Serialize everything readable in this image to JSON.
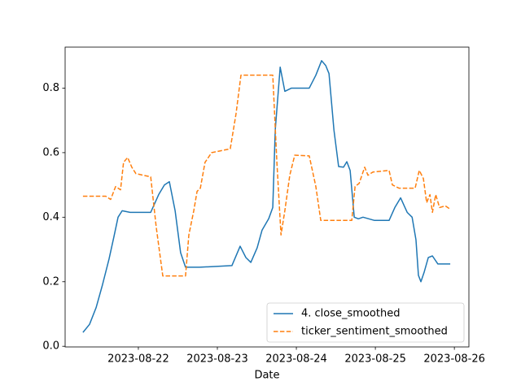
{
  "chart_data": {
    "type": "line",
    "x_label": "Date",
    "xlim": [
      "2023-08-21T01:45",
      "2023-08-26T04:25"
    ],
    "xticks": [
      "2023-08-22",
      "2023-08-23",
      "2023-08-24",
      "2023-08-25",
      "2023-08-26"
    ],
    "ylim": [
      -0.002,
      0.927
    ],
    "yticks": [
      {
        "value": 0,
        "label": "0.0"
      },
      {
        "value": 0.2,
        "label": "0.2"
      },
      {
        "value": 0.4,
        "label": "0.4"
      },
      {
        "value": 0.6,
        "label": "0.6"
      },
      {
        "value": 0.8,
        "label": "0.8"
      }
    ],
    "grid": false,
    "legend": "lower right",
    "series": [
      {
        "name": "4. close_smoothed",
        "color": "#1f77b4",
        "dash": "solid",
        "x": [
          "2023-08-21T07:10",
          "2023-08-21T09:10",
          "2023-08-21T11:10",
          "2023-08-21T13:05",
          "2023-08-21T15:05",
          "2023-08-21T16:35",
          "2023-08-21T17:50",
          "2023-08-21T19:05",
          "2023-08-21T21:30",
          "2023-08-22T03:45",
          "2023-08-22T06:10",
          "2023-08-22T07:55",
          "2023-08-22T09:25",
          "2023-08-22T11:10",
          "2023-08-22T12:50",
          "2023-08-22T14:20",
          "2023-08-22T16:05",
          "2023-08-22T18:35",
          "2023-08-23T04:25",
          "2023-08-23T06:55",
          "2023-08-23T08:40",
          "2023-08-23T10:10",
          "2023-08-23T12:05",
          "2023-08-23T13:35",
          "2023-08-23T15:35",
          "2023-08-23T16:50",
          "2023-08-23T17:35",
          "2023-08-23T19:05",
          "2023-08-23T20:30",
          "2023-08-23T22:30",
          "2023-08-24T03:55",
          "2023-08-24T05:55",
          "2023-08-24T07:40",
          "2023-08-24T08:55",
          "2023-08-24T09:55",
          "2023-08-24T11:25",
          "2023-08-24T12:50",
          "2023-08-24T14:20",
          "2023-08-24T15:20",
          "2023-08-24T16:20",
          "2023-08-24T17:35",
          "2023-08-24T18:50",
          "2023-08-24T20:15",
          "2023-08-24T23:45",
          "2023-08-25T04:10",
          "2023-08-25T05:55",
          "2023-08-25T07:40",
          "2023-08-25T09:40",
          "2023-08-25T11:10",
          "2023-08-25T12:20",
          "2023-08-25T13:05",
          "2023-08-25T13:50",
          "2023-08-25T14:50",
          "2023-08-25T16:05",
          "2023-08-25T17:20",
          "2023-08-25T19:00",
          "2023-08-25T22:45"
        ],
        "values": [
          0.043,
          0.068,
          0.12,
          0.19,
          0.27,
          0.34,
          0.4,
          0.42,
          0.415,
          0.415,
          0.47,
          0.5,
          0.51,
          0.42,
          0.29,
          0.245,
          0.245,
          0.245,
          0.25,
          0.31,
          0.275,
          0.26,
          0.305,
          0.36,
          0.395,
          0.43,
          0.67,
          0.865,
          0.79,
          0.8,
          0.8,
          0.84,
          0.885,
          0.87,
          0.845,
          0.67,
          0.557,
          0.555,
          0.572,
          0.545,
          0.4,
          0.395,
          0.4,
          0.39,
          0.39,
          0.43,
          0.46,
          0.415,
          0.4,
          0.33,
          0.22,
          0.2,
          0.23,
          0.275,
          0.28,
          0.255,
          0.255
        ]
      },
      {
        "name": "ticker_sentiment_smoothed",
        "color": "#ff7f0e",
        "dash": "dashed",
        "x": [
          "2023-08-21T07:10",
          "2023-08-21T14:05",
          "2023-08-21T15:35",
          "2023-08-21T17:05",
          "2023-08-21T18:35",
          "2023-08-21T19:30",
          "2023-08-21T20:45",
          "2023-08-21T22:00",
          "2023-08-21T23:15",
          "2023-08-22T03:45",
          "2023-08-22T05:25",
          "2023-08-22T07:25",
          "2023-08-22T14:20",
          "2023-08-22T15:20",
          "2023-08-22T16:50",
          "2023-08-22T17:50",
          "2023-08-22T18:50",
          "2023-08-22T20:15",
          "2023-08-22T22:15",
          "2023-08-23T03:55",
          "2023-08-23T05:40",
          "2023-08-23T07:10",
          "2023-08-23T16:50",
          "2023-08-23T18:05",
          "2023-08-23T19:20",
          "2023-08-23T20:30",
          "2023-08-23T22:00",
          "2023-08-23T23:30",
          "2023-08-24T03:55",
          "2023-08-24T05:55",
          "2023-08-24T07:25",
          "2023-08-24T16:50",
          "2023-08-24T17:50",
          "2023-08-24T19:05",
          "2023-08-24T20:45",
          "2023-08-24T21:45",
          "2023-08-24T23:15",
          "2023-08-25T04:10",
          "2023-08-25T05:10",
          "2023-08-25T07:10",
          "2023-08-25T12:05",
          "2023-08-25T13:20",
          "2023-08-25T14:35",
          "2023-08-25T15:35",
          "2023-08-25T16:35",
          "2023-08-25T17:20",
          "2023-08-25T18:20",
          "2023-08-25T19:30",
          "2023-08-25T21:15",
          "2023-08-25T22:45"
        ],
        "values": [
          0.465,
          0.465,
          0.455,
          0.495,
          0.485,
          0.57,
          0.585,
          0.555,
          0.535,
          0.525,
          0.37,
          0.218,
          0.218,
          0.345,
          0.42,
          0.48,
          0.49,
          0.57,
          0.6,
          0.612,
          0.72,
          0.84,
          0.84,
          0.57,
          0.345,
          0.42,
          0.53,
          0.592,
          0.59,
          0.495,
          0.39,
          0.39,
          0.495,
          0.505,
          0.555,
          0.53,
          0.54,
          0.545,
          0.5,
          0.49,
          0.49,
          0.545,
          0.52,
          0.445,
          0.47,
          0.415,
          0.47,
          0.43,
          0.435,
          0.425
        ]
      }
    ]
  }
}
